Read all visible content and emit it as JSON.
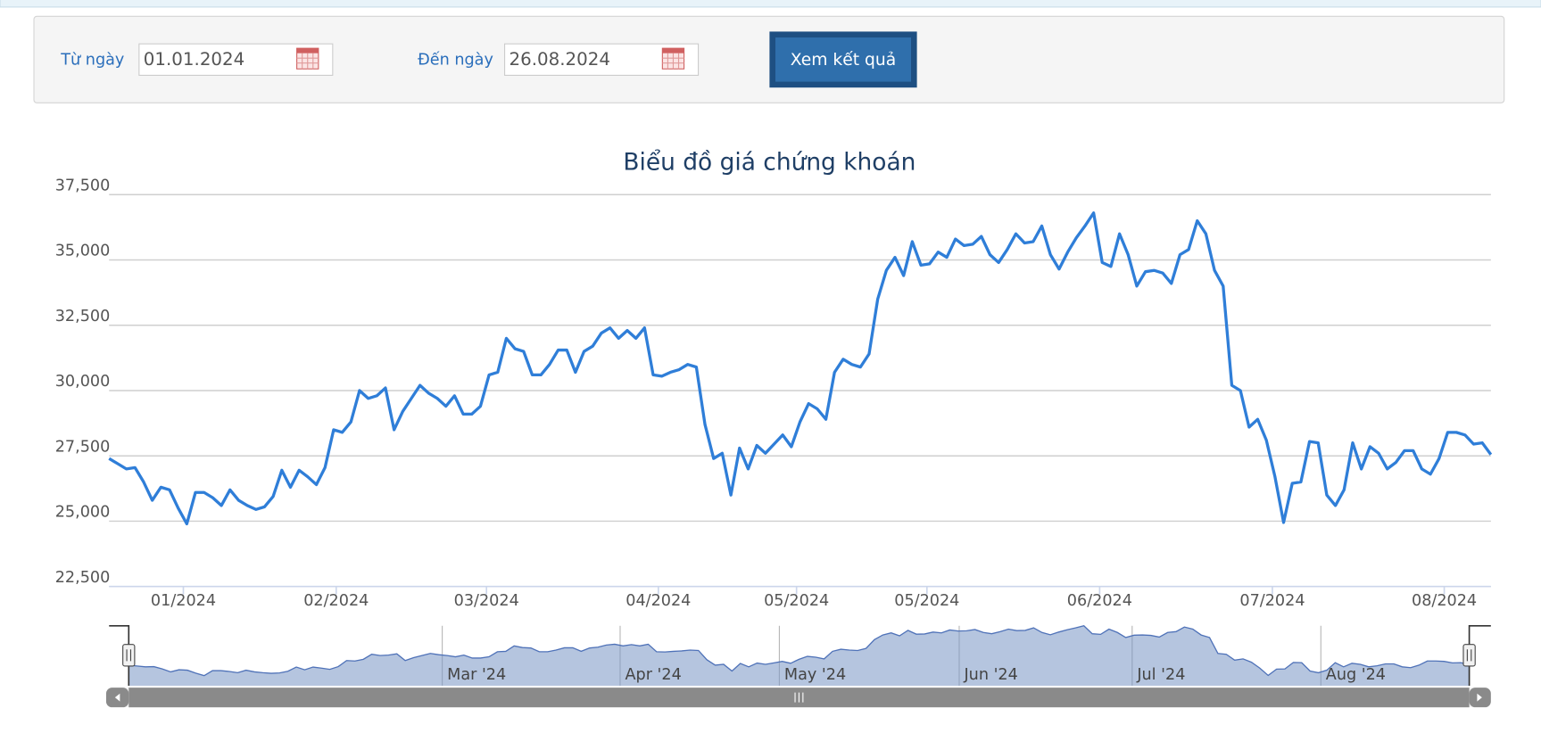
{
  "form": {
    "from_label": "Từ ngày",
    "from_value": "01.01.2024",
    "to_label": "Đến ngày",
    "to_value": "26.08.2024",
    "button": "Xem kết quả"
  },
  "chart_data": {
    "type": "line",
    "title": "Biểu đồ giá chứng khoán",
    "color": "#2f7ed8",
    "values": [
      27400,
      27200,
      27000,
      27050,
      26500,
      25800,
      26300,
      26200,
      25500,
      24900,
      26100,
      26100,
      25900,
      25600,
      26200,
      25800,
      25600,
      25450,
      25550,
      25950,
      26950,
      26300,
      26950,
      26700,
      26400,
      27050,
      28500,
      28400,
      28800,
      30000,
      29700,
      29800,
      30100,
      28500,
      29200,
      29700,
      30200,
      29900,
      29700,
      29400,
      29800,
      29100,
      29100,
      29400,
      30600,
      30700,
      32000,
      31600,
      31500,
      30600,
      30600,
      31000,
      31550,
      31550,
      30700,
      31500,
      31700,
      32200,
      32400,
      32000,
      32300,
      32000,
      32400,
      30600,
      30550,
      30700,
      30800,
      31000,
      30900,
      28700,
      27400,
      27600,
      26000,
      27800,
      27000,
      27900,
      27600,
      27950,
      28300,
      27850,
      28800,
      29500,
      29300,
      28900,
      30700,
      31200,
      31000,
      30900,
      31400,
      33500,
      34600,
      35100,
      34400,
      35700,
      34800,
      34850,
      35300,
      35100,
      35800,
      35550,
      35600,
      35900,
      35200,
      34900,
      35400,
      36000,
      35650,
      35700,
      36300,
      35200,
      34650,
      35300,
      35850,
      36300,
      36800,
      34900,
      34750,
      36000,
      35200,
      34000,
      34550,
      34600,
      34500,
      34100,
      35200,
      35400,
      36500,
      36000,
      34600,
      34000,
      30200,
      30000,
      28600,
      28900,
      28100,
      26700,
      24950,
      26450,
      26500,
      28050,
      28000,
      26000,
      25600,
      26200,
      28000,
      27000,
      27850,
      27600,
      27000,
      27250,
      27700,
      27700,
      27000,
      26800,
      27400,
      28400,
      28400,
      28300,
      27950,
      28000,
      27550
    ],
    "xlim": [
      0,
      160
    ],
    "xticks": [
      {
        "value": 8.6,
        "label": "01/2024"
      },
      {
        "value": 26.3,
        "label": "02/2024"
      },
      {
        "value": 43.7,
        "label": "03/2024"
      },
      {
        "value": 63.6,
        "label": "04/2024"
      },
      {
        "value": 79.6,
        "label": "05/2024"
      },
      {
        "value": 94.7,
        "label": "05/2024"
      },
      {
        "value": 114.7,
        "label": "06/2024"
      },
      {
        "value": 134.7,
        "label": "07/2024"
      },
      {
        "value": 154.6,
        "label": "08/2024"
      }
    ],
    "ylim": [
      22500,
      37500
    ],
    "yticks": [
      {
        "value": 22500,
        "label": "22,500"
      },
      {
        "value": 25000,
        "label": "25,000"
      },
      {
        "value": 27500,
        "label": "27,500"
      },
      {
        "value": 30000,
        "label": "30,000"
      },
      {
        "value": 32500,
        "label": "32,500"
      },
      {
        "value": 35000,
        "label": "35,000"
      },
      {
        "value": 37500,
        "label": "37,500"
      }
    ],
    "grid": true,
    "navigator_labels": [
      "Mar '24",
      "Apr '24",
      "May '24",
      "Jun '24",
      "Jul '24",
      "Aug '24"
    ]
  }
}
